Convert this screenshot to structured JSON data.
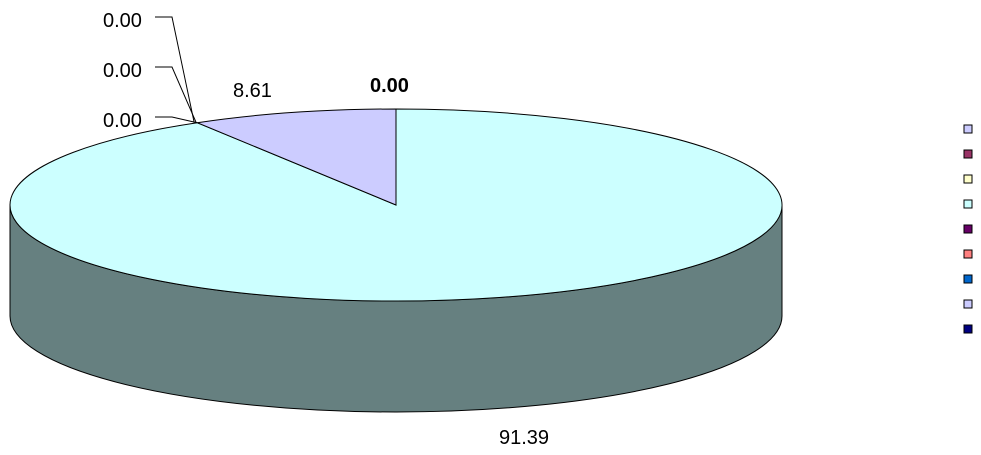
{
  "chart_data": {
    "type": "pie",
    "style": "3d",
    "title": "",
    "series": [
      {
        "value": 8.61,
        "label": "8.61",
        "color": "#ccccff"
      },
      {
        "value": 0.0,
        "label": "0.00",
        "color": "#993366"
      },
      {
        "value": 0.0,
        "label": "0.00",
        "color": "#ffffcc"
      },
      {
        "value": 91.39,
        "label": "91.39",
        "color": "#ccffff"
      },
      {
        "value": 0.0,
        "label": "0.00",
        "color": "#660066"
      },
      {
        "value": 0.0,
        "label": "0.00",
        "color": "#ff8080"
      },
      {
        "value": 0.0,
        "label": "0.00",
        "color": "#0066cc"
      },
      {
        "value": 0.0,
        "label": "0.00",
        "color": "#ccccff"
      },
      {
        "value": 0.0,
        "label": "0.00",
        "color": "#000080"
      }
    ],
    "side_color": "#668080",
    "legend": {
      "position": "right",
      "show_text": false
    }
  }
}
